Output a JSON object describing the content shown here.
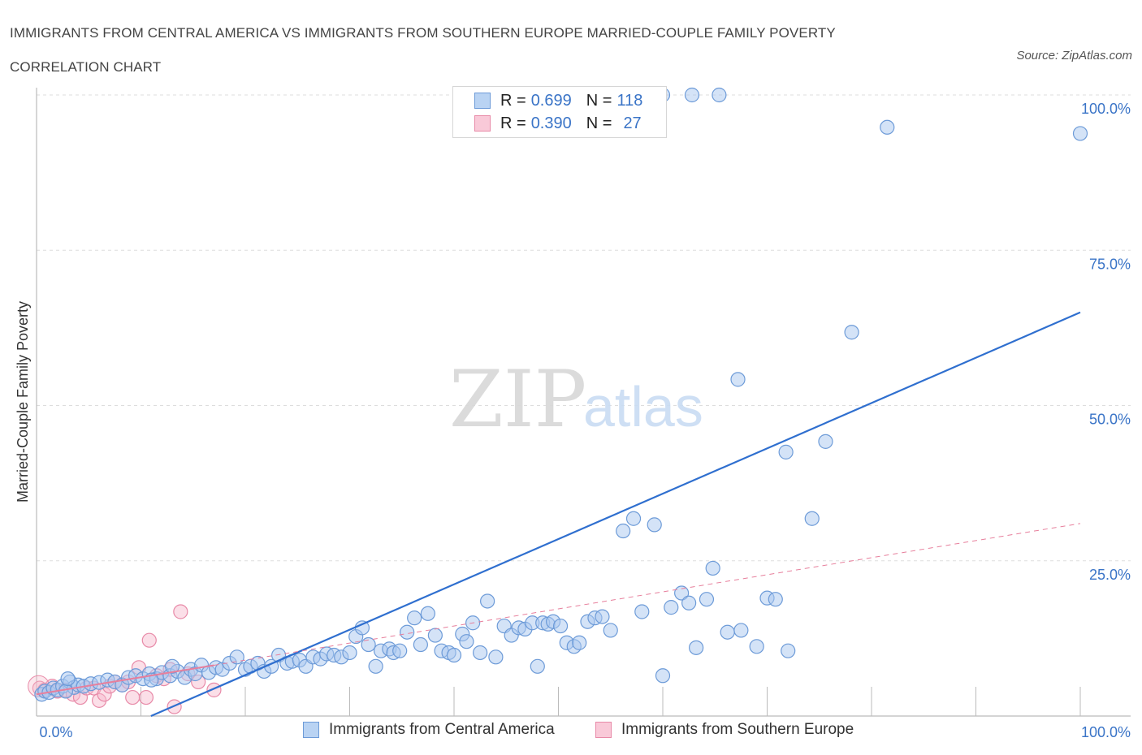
{
  "header": {
    "title": "IMMIGRANTS FROM CENTRAL AMERICA VS IMMIGRANTS FROM SOUTHERN EUROPE MARRIED-COUPLE FAMILY POVERTY CORRELATION CHART",
    "source": "Source: ZipAtlas.com"
  },
  "watermark": {
    "zip": "ZIP",
    "atlas": "atlas"
  },
  "legend": {
    "rows": [
      {
        "r_label": "R =",
        "r_value": "0.699",
        "n_label": "N =",
        "n_value": "118"
      },
      {
        "r_label": "R =",
        "r_value": "0.390",
        "n_label": "N =",
        "n_value": "27"
      }
    ]
  },
  "colors": {
    "blue_fill": "#a9c8f0",
    "blue_stroke": "#6d9bd8",
    "blue_line": "#2f6fcf",
    "pink_fill": "#f6b9cc",
    "pink_stroke": "#e88aa8",
    "pink_line": "#e77f9c",
    "grid": "#dddddd",
    "tick_label": "#3a74c7"
  },
  "chart_data": {
    "type": "scatter",
    "title": "IMMIGRANTS FROM CENTRAL AMERICA VS IMMIGRANTS FROM SOUTHERN EUROPE MARRIED-COUPLE FAMILY POVERTY CORRELATION CHART",
    "xlabel": "",
    "ylabel": "Married-Couple Family Poverty",
    "xlim": [
      0,
      100
    ],
    "ylim": [
      0,
      100
    ],
    "x_tick_labels": [
      "0.0%",
      "100.0%"
    ],
    "y_ticks": [
      25,
      50,
      75,
      100
    ],
    "y_tick_labels": [
      "25.0%",
      "50.0%",
      "75.0%",
      "100.0%"
    ],
    "grid": true,
    "legend_position": "bottom",
    "series": [
      {
        "name": "Immigrants from Central America",
        "R": 0.699,
        "N": 118,
        "trend": {
          "x": [
            0,
            100
          ],
          "y": [
            -8,
            65
          ]
        },
        "points": [
          [
            0.5,
            3.5
          ],
          [
            0.8,
            4.0
          ],
          [
            1.2,
            3.8
          ],
          [
            1.6,
            4.5
          ],
          [
            2.0,
            4.2
          ],
          [
            2.5,
            4.8
          ],
          [
            3.2,
            5.5
          ],
          [
            3.6,
            4.6
          ],
          [
            4.0,
            5.0
          ],
          [
            4.5,
            4.8
          ],
          [
            5.2,
            5.2
          ],
          [
            6.0,
            5.4
          ],
          [
            6.8,
            5.8
          ],
          [
            7.5,
            5.5
          ],
          [
            8.2,
            5.0
          ],
          [
            8.8,
            6.2
          ],
          [
            9.5,
            6.5
          ],
          [
            10.2,
            6.0
          ],
          [
            10.8,
            6.8
          ],
          [
            11.5,
            6.0
          ],
          [
            12.0,
            7.0
          ],
          [
            12.8,
            6.5
          ],
          [
            13.5,
            7.2
          ],
          [
            14.2,
            6.2
          ],
          [
            14.8,
            7.5
          ],
          [
            15.2,
            6.8
          ],
          [
            15.8,
            8.2
          ],
          [
            16.5,
            7.0
          ],
          [
            17.2,
            7.8
          ],
          [
            17.8,
            7.5
          ],
          [
            18.5,
            8.5
          ],
          [
            19.2,
            9.5
          ],
          [
            20.0,
            7.5
          ],
          [
            20.5,
            8.0
          ],
          [
            21.2,
            8.5
          ],
          [
            21.8,
            7.2
          ],
          [
            22.5,
            8.0
          ],
          [
            23.2,
            9.8
          ],
          [
            24.0,
            8.5
          ],
          [
            24.5,
            8.8
          ],
          [
            25.2,
            9.0
          ],
          [
            25.8,
            8.0
          ],
          [
            26.5,
            9.5
          ],
          [
            27.2,
            9.2
          ],
          [
            27.8,
            10.0
          ],
          [
            28.5,
            9.8
          ],
          [
            29.2,
            9.5
          ],
          [
            30.0,
            10.2
          ],
          [
            30.6,
            12.8
          ],
          [
            31.2,
            14.2
          ],
          [
            31.8,
            11.5
          ],
          [
            32.5,
            8.0
          ],
          [
            33.0,
            10.5
          ],
          [
            33.8,
            10.8
          ],
          [
            34.2,
            10.2
          ],
          [
            34.8,
            10.5
          ],
          [
            35.5,
            13.5
          ],
          [
            36.2,
            15.8
          ],
          [
            36.8,
            11.5
          ],
          [
            37.5,
            16.5
          ],
          [
            38.2,
            13.0
          ],
          [
            38.8,
            10.5
          ],
          [
            39.5,
            10.2
          ],
          [
            40.0,
            9.8
          ],
          [
            40.8,
            13.2
          ],
          [
            41.2,
            12.0
          ],
          [
            41.8,
            15.0
          ],
          [
            42.5,
            10.2
          ],
          [
            43.2,
            18.5
          ],
          [
            44.0,
            9.5
          ],
          [
            44.8,
            14.5
          ],
          [
            45.5,
            13.0
          ],
          [
            46.2,
            14.2
          ],
          [
            46.8,
            14.0
          ],
          [
            47.5,
            15.0
          ],
          [
            48.0,
            8.0
          ],
          [
            48.5,
            15.0
          ],
          [
            49.0,
            14.8
          ],
          [
            49.5,
            15.2
          ],
          [
            50.2,
            14.5
          ],
          [
            50.8,
            11.8
          ],
          [
            51.5,
            11.2
          ],
          [
            52.0,
            11.8
          ],
          [
            52.8,
            15.2
          ],
          [
            53.5,
            15.8
          ],
          [
            54.2,
            16.0
          ],
          [
            55.0,
            13.8
          ],
          [
            56.2,
            29.8
          ],
          [
            57.2,
            31.8
          ],
          [
            58.0,
            16.8
          ],
          [
            59.2,
            30.8
          ],
          [
            60.0,
            6.5
          ],
          [
            60.8,
            17.5
          ],
          [
            61.8,
            19.8
          ],
          [
            62.5,
            18.2
          ],
          [
            63.2,
            11.0
          ],
          [
            64.2,
            18.8
          ],
          [
            64.8,
            23.8
          ],
          [
            66.2,
            13.5
          ],
          [
            67.2,
            54.2
          ],
          [
            67.5,
            13.8
          ],
          [
            69.0,
            11.2
          ],
          [
            70.0,
            19.0
          ],
          [
            70.8,
            18.8
          ],
          [
            71.8,
            42.5
          ],
          [
            72.0,
            10.5
          ],
          [
            74.3,
            31.8
          ],
          [
            75.6,
            44.2
          ],
          [
            78.1,
            61.8
          ],
          [
            60.0,
            100.0
          ],
          [
            62.8,
            100.0
          ],
          [
            65.4,
            100.0
          ],
          [
            81.5,
            94.8
          ],
          [
            100.0,
            93.8
          ],
          [
            2.8,
            4.0
          ],
          [
            3.0,
            6.0
          ],
          [
            11.0,
            5.8
          ],
          [
            13.0,
            8.0
          ]
        ]
      },
      {
        "name": "Immigrants from Southern Europe",
        "R": 0.39,
        "N": 27,
        "trend": {
          "x": [
            0,
            100
          ],
          "y": [
            3.5,
            31
          ]
        },
        "points": [
          [
            0.3,
            4.5
          ],
          [
            0.8,
            4.2
          ],
          [
            1.5,
            4.8
          ],
          [
            2.0,
            4.0
          ],
          [
            2.8,
            4.2
          ],
          [
            3.5,
            3.5
          ],
          [
            4.2,
            3.0
          ],
          [
            4.8,
            4.5
          ],
          [
            5.5,
            4.5
          ],
          [
            6.0,
            2.5
          ],
          [
            6.5,
            3.5
          ],
          [
            7.0,
            4.8
          ],
          [
            7.5,
            5.5
          ],
          [
            8.2,
            5.0
          ],
          [
            8.8,
            5.5
          ],
          [
            9.2,
            3.0
          ],
          [
            9.8,
            7.8
          ],
          [
            10.5,
            3.0
          ],
          [
            10.8,
            12.2
          ],
          [
            11.5,
            6.5
          ],
          [
            12.2,
            6.0
          ],
          [
            12.8,
            7.5
          ],
          [
            13.2,
            1.5
          ],
          [
            13.8,
            16.8
          ],
          [
            14.5,
            6.8
          ],
          [
            15.5,
            5.5
          ],
          [
            17.0,
            4.2
          ]
        ]
      }
    ]
  }
}
